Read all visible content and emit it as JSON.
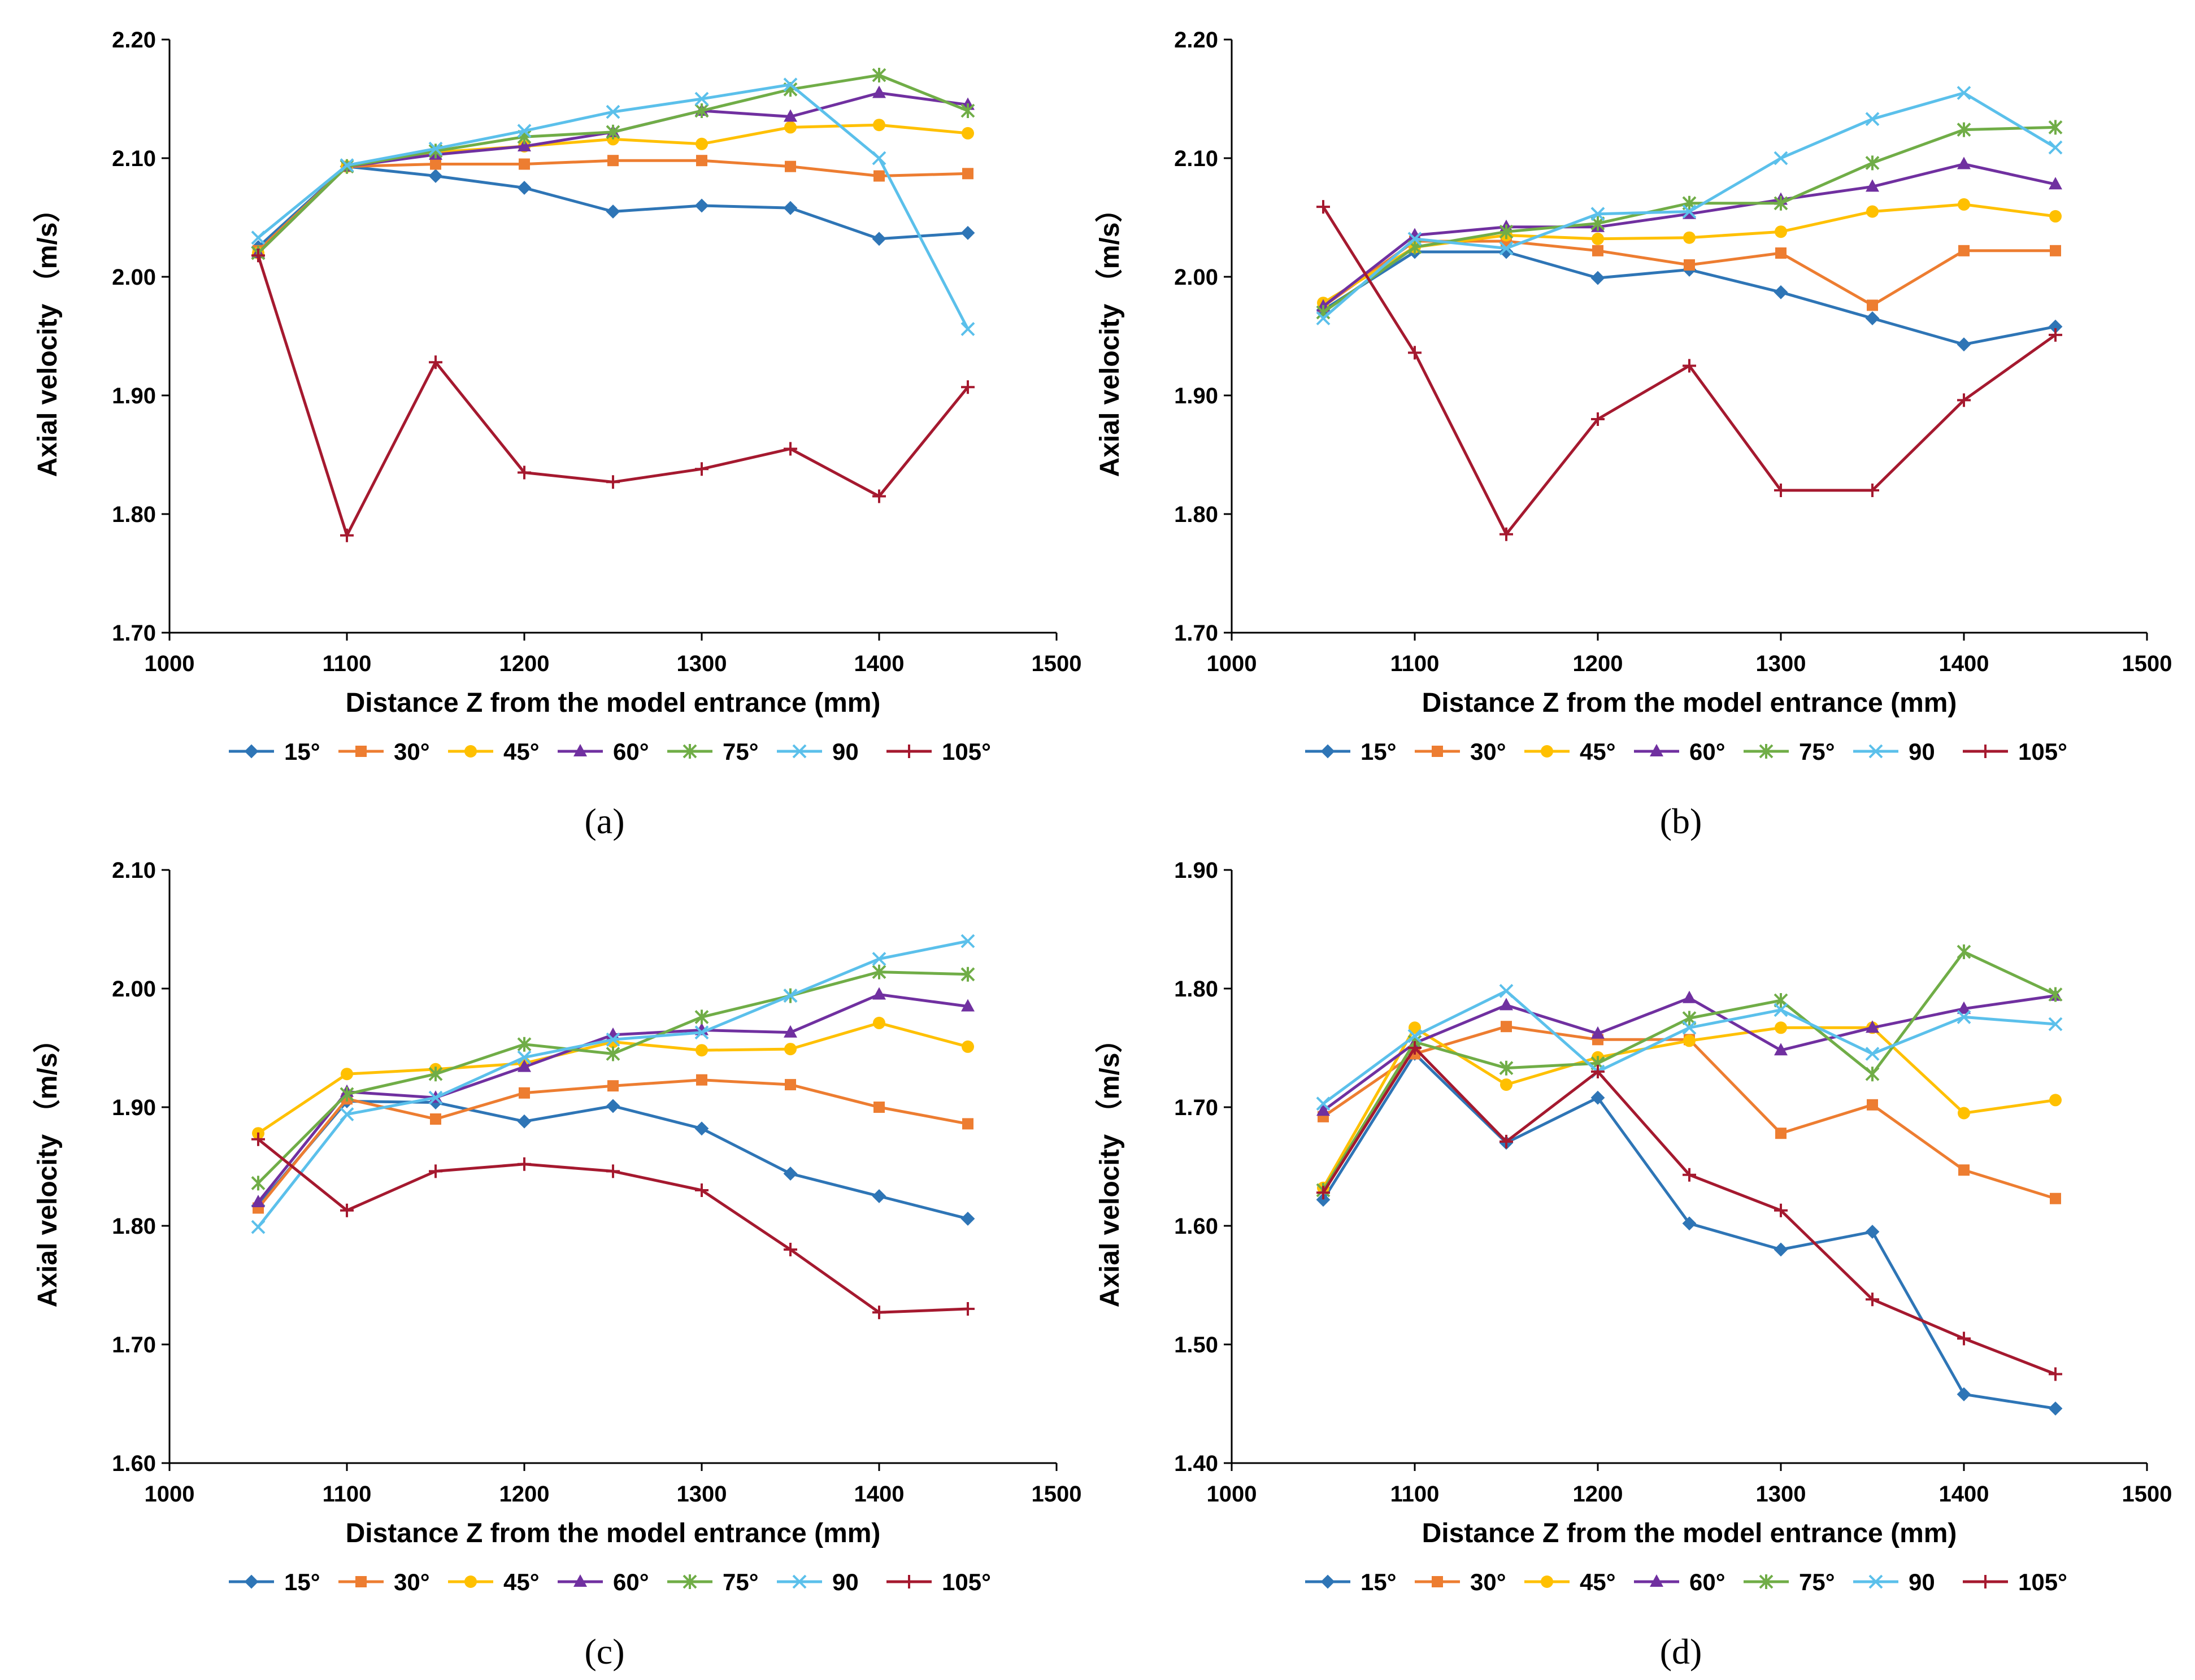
{
  "series_styles": [
    {
      "color": "#2E75B6",
      "marker": "diamond"
    },
    {
      "color": "#ED7D31",
      "marker": "square"
    },
    {
      "color": "#FFC000",
      "marker": "circle"
    },
    {
      "color": "#7030A0",
      "marker": "triangle"
    },
    {
      "color": "#70AD47",
      "marker": "asterisk"
    },
    {
      "color": "#5BC0EB",
      "marker": "x"
    },
    {
      "color": "#A5192F",
      "marker": "plus"
    }
  ],
  "chart_data": [
    {
      "type": "line",
      "label": "(a)",
      "xlabel": "Distance Z from the model entrance (mm)",
      "ylabel": "Axial velocity （m/s）",
      "xlim": [
        1000,
        1500
      ],
      "ylim": [
        1.7,
        2.2
      ],
      "xticks": [
        "1000",
        "1100",
        "1200",
        "1300",
        "1400",
        "1500"
      ],
      "yticks": [
        "1.70",
        "1.80",
        "1.90",
        "2.00",
        "2.10",
        "2.20"
      ],
      "x": [
        1050,
        1100,
        1150,
        1200,
        1250,
        1300,
        1350,
        1400,
        1450
      ],
      "legend_position": "bottom",
      "series": [
        {
          "name": "15°",
          "values": [
            2.025,
            2.093,
            2.085,
            2.075,
            2.055,
            2.06,
            2.058,
            2.032,
            2.037
          ]
        },
        {
          "name": "30°",
          "values": [
            2.022,
            2.093,
            2.095,
            2.095,
            2.098,
            2.098,
            2.093,
            2.085,
            2.087
          ]
        },
        {
          "name": "45°",
          "values": [
            2.02,
            2.093,
            2.105,
            2.11,
            2.116,
            2.112,
            2.126,
            2.128,
            2.121
          ]
        },
        {
          "name": "60°",
          "values": [
            2.02,
            2.093,
            2.103,
            2.11,
            2.122,
            2.14,
            2.135,
            2.155,
            2.145
          ]
        },
        {
          "name": "75°",
          "values": [
            2.02,
            2.093,
            2.106,
            2.118,
            2.122,
            2.14,
            2.158,
            2.17,
            2.14
          ]
        },
        {
          "name": "90",
          "values": [
            2.033,
            2.094,
            2.108,
            2.123,
            2.139,
            2.15,
            2.162,
            2.1,
            1.956
          ]
        },
        {
          "name": "105°",
          "values": [
            2.018,
            1.782,
            1.928,
            1.835,
            1.827,
            1.838,
            1.855,
            1.815,
            1.907
          ]
        }
      ]
    },
    {
      "type": "line",
      "label": "(b)",
      "xlabel": "Distance Z from the model entrance (mm)",
      "ylabel": "Axial velocity （m/s）",
      "xlim": [
        1000,
        1500
      ],
      "ylim": [
        1.7,
        2.2
      ],
      "xticks": [
        "1000",
        "1100",
        "1200",
        "1300",
        "1400",
        "1500"
      ],
      "yticks": [
        "1.70",
        "1.80",
        "1.90",
        "2.00",
        "2.10",
        "2.20"
      ],
      "x": [
        1050,
        1100,
        1150,
        1200,
        1250,
        1300,
        1350,
        1400,
        1450
      ],
      "legend_position": "bottom",
      "series": [
        {
          "name": "15°",
          "values": [
            1.972,
            2.021,
            2.021,
            1.999,
            2.006,
            1.987,
            1.965,
            1.943,
            1.958
          ]
        },
        {
          "name": "30°",
          "values": [
            1.975,
            2.03,
            2.03,
            2.022,
            2.01,
            2.02,
            1.976,
            2.022,
            2.022
          ]
        },
        {
          "name": "45°",
          "values": [
            1.978,
            2.025,
            2.035,
            2.032,
            2.033,
            2.038,
            2.055,
            2.061,
            2.051
          ]
        },
        {
          "name": "60°",
          "values": [
            1.975,
            2.035,
            2.042,
            2.042,
            2.053,
            2.065,
            2.076,
            2.095,
            2.078
          ]
        },
        {
          "name": "75°",
          "values": [
            1.97,
            2.025,
            2.038,
            2.045,
            2.062,
            2.062,
            2.096,
            2.124,
            2.126
          ]
        },
        {
          "name": "90",
          "values": [
            1.965,
            2.032,
            2.024,
            2.053,
            2.055,
            2.1,
            2.133,
            2.155,
            2.109
          ]
        },
        {
          "name": "105°",
          "values": [
            2.059,
            1.936,
            1.783,
            1.88,
            1.925,
            1.82,
            1.82,
            1.896,
            1.951
          ]
        }
      ]
    },
    {
      "type": "line",
      "label": "(c)",
      "xlabel": "Distance Z from the model entrance (mm)",
      "ylabel": "Axial velocity （m/s）",
      "xlim": [
        1000,
        1500
      ],
      "ylim": [
        1.6,
        2.1
      ],
      "xticks": [
        "1000",
        "1100",
        "1200",
        "1300",
        "1400",
        "1500"
      ],
      "yticks": [
        "1.60",
        "1.70",
        "1.80",
        "1.90",
        "2.00",
        "2.10"
      ],
      "x": [
        1050,
        1100,
        1150,
        1200,
        1250,
        1300,
        1350,
        1400,
        1450
      ],
      "legend_position": "bottom",
      "series": [
        {
          "name": "15°",
          "values": [
            1.817,
            1.905,
            1.904,
            1.888,
            1.901,
            1.882,
            1.844,
            1.825,
            1.806
          ]
        },
        {
          "name": "30°",
          "values": [
            1.815,
            1.907,
            1.89,
            1.912,
            1.918,
            1.923,
            1.919,
            1.9,
            1.886
          ]
        },
        {
          "name": "45°",
          "values": [
            1.878,
            1.928,
            1.932,
            1.937,
            1.955,
            1.948,
            1.949,
            1.971,
            1.951
          ]
        },
        {
          "name": "60°",
          "values": [
            1.82,
            1.913,
            1.908,
            1.934,
            1.961,
            1.965,
            1.963,
            1.995,
            1.985
          ]
        },
        {
          "name": "75°",
          "values": [
            1.836,
            1.911,
            1.928,
            1.953,
            1.945,
            1.976,
            1.994,
            2.014,
            2.012
          ]
        },
        {
          "name": "90",
          "values": [
            1.799,
            1.894,
            1.908,
            1.942,
            1.957,
            1.963,
            1.994,
            2.025,
            2.04
          ]
        },
        {
          "name": "105°",
          "values": [
            1.873,
            1.813,
            1.846,
            1.852,
            1.846,
            1.83,
            1.78,
            1.727,
            1.73
          ]
        }
      ]
    },
    {
      "type": "line",
      "label": "(d)",
      "xlabel": "Distance Z from the model entrance (mm)",
      "ylabel": "Axial velocity （m/s）",
      "xlim": [
        1000,
        1500
      ],
      "ylim": [
        1.4,
        1.9
      ],
      "xticks": [
        "1000",
        "1100",
        "1200",
        "1300",
        "1400",
        "1500"
      ],
      "yticks": [
        "1.40",
        "1.50",
        "1.60",
        "1.70",
        "1.80",
        "1.90"
      ],
      "x": [
        1050,
        1100,
        1150,
        1200,
        1250,
        1300,
        1350,
        1400,
        1450
      ],
      "legend_position": "bottom",
      "series": [
        {
          "name": "15°",
          "values": [
            1.622,
            1.745,
            1.67,
            1.708,
            1.602,
            1.58,
            1.595,
            1.458,
            1.446
          ]
        },
        {
          "name": "30°",
          "values": [
            1.692,
            1.745,
            1.768,
            1.757,
            1.757,
            1.678,
            1.702,
            1.647,
            1.623
          ]
        },
        {
          "name": "45°",
          "values": [
            1.632,
            1.767,
            1.719,
            1.742,
            1.756,
            1.767,
            1.767,
            1.695,
            1.706
          ]
        },
        {
          "name": "60°",
          "values": [
            1.697,
            1.754,
            1.786,
            1.762,
            1.792,
            1.748,
            1.767,
            1.783,
            1.794
          ]
        },
        {
          "name": "75°",
          "values": [
            1.63,
            1.755,
            1.733,
            1.737,
            1.775,
            1.79,
            1.728,
            1.831,
            1.795
          ]
        },
        {
          "name": "90",
          "values": [
            1.703,
            1.76,
            1.798,
            1.73,
            1.767,
            1.782,
            1.745,
            1.776,
            1.77
          ]
        },
        {
          "name": "105°",
          "values": [
            1.628,
            1.75,
            1.671,
            1.73,
            1.643,
            1.613,
            1.538,
            1.505,
            1.475
          ]
        }
      ]
    }
  ]
}
